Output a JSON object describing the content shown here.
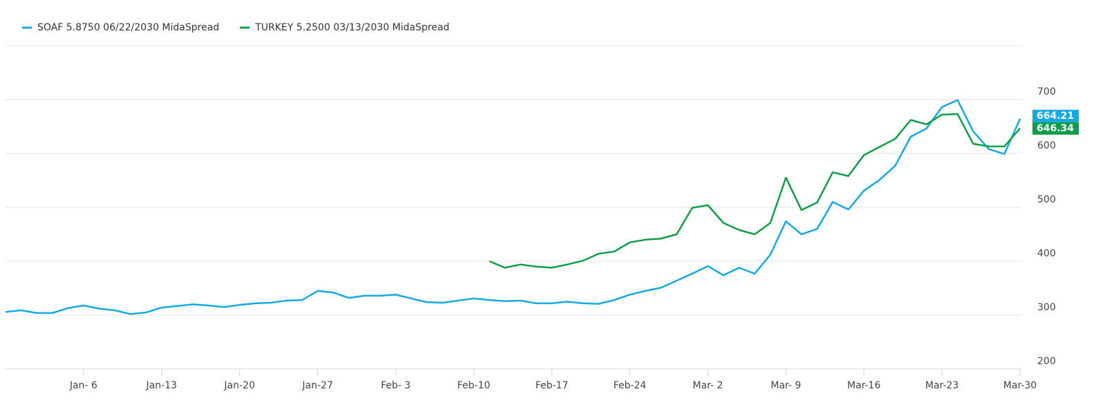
{
  "chart_data": {
    "type": "line",
    "categories": [
      null,
      null,
      null,
      null,
      null,
      "Jan- 6",
      null,
      null,
      null,
      null,
      "Jan-13",
      null,
      null,
      null,
      null,
      "Jan-20",
      null,
      null,
      null,
      null,
      "Jan-27",
      null,
      null,
      null,
      null,
      "Feb- 3",
      null,
      null,
      null,
      null,
      "Feb-10",
      null,
      null,
      null,
      null,
      "Feb-17",
      null,
      null,
      null,
      null,
      "Feb-24",
      null,
      null,
      null,
      null,
      "Mar- 2",
      null,
      null,
      null,
      null,
      "Mar- 9",
      null,
      null,
      null,
      null,
      "Mar-16",
      null,
      null,
      null,
      null,
      "Mar-23",
      null,
      null,
      null,
      null,
      "Mar-30"
    ],
    "series": [
      {
        "name": "SOAF 5.8750 06/22/2030 MidaSpread",
        "color": "#14a9e1",
        "values": [
          306,
          309,
          304,
          304,
          313,
          318,
          312,
          309,
          302,
          305,
          314,
          317,
          320,
          318,
          315,
          319,
          322,
          323,
          327,
          328,
          345,
          342,
          332,
          336,
          336,
          338,
          331,
          324,
          323,
          327,
          331,
          328,
          326,
          327,
          322,
          322,
          325,
          322,
          321,
          328,
          338,
          345,
          351,
          364,
          377,
          391,
          374,
          388,
          377,
          412,
          474,
          450,
          460,
          510,
          496,
          531,
          551,
          577,
          631,
          646,
          686,
          699,
          641,
          608,
          599,
          664.21
        ]
      },
      {
        "name": "TURKEY 5.2500 03/13/2030 MidaSpread",
        "color": "#0e9e4a",
        "values": [
          null,
          null,
          null,
          null,
          null,
          null,
          null,
          null,
          null,
          null,
          null,
          null,
          null,
          null,
          null,
          null,
          null,
          null,
          null,
          null,
          null,
          null,
          null,
          null,
          null,
          null,
          null,
          null,
          null,
          null,
          null,
          400,
          388,
          394,
          390,
          388,
          394,
          401,
          414,
          418,
          435,
          440,
          442,
          450,
          499,
          504,
          471,
          458,
          450,
          471,
          555,
          495,
          509,
          565,
          558,
          597,
          612,
          627,
          662,
          654,
          672,
          673,
          618,
          613,
          613,
          646.34
        ]
      }
    ],
    "ylim": [
      200,
      800
    ],
    "yticks": [
      200,
      300,
      400,
      500,
      600,
      700
    ],
    "grid": true
  }
}
